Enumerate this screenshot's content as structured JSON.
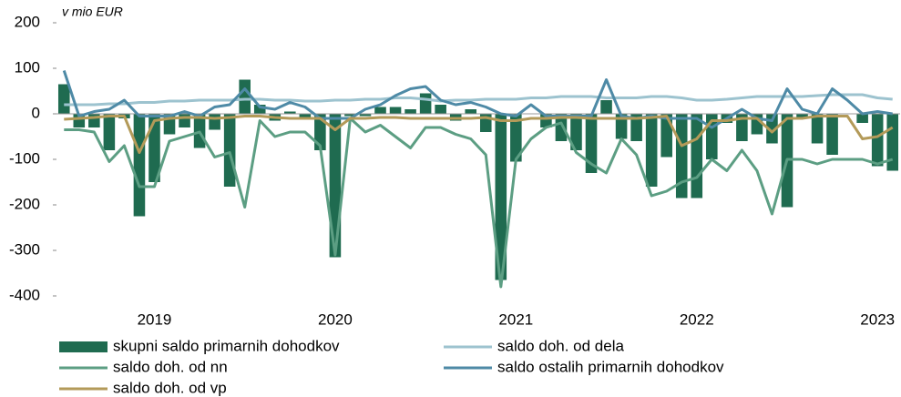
{
  "chart_data": {
    "type": "bar_line",
    "y_unit_label": "v mio EUR",
    "categories": [
      null,
      null,
      null,
      null,
      null,
      null,
      "2019",
      null,
      null,
      null,
      null,
      null,
      null,
      null,
      null,
      null,
      null,
      null,
      "2020",
      null,
      null,
      null,
      null,
      null,
      null,
      null,
      null,
      null,
      null,
      null,
      "2021",
      null,
      null,
      null,
      null,
      null,
      null,
      null,
      null,
      null,
      null,
      null,
      "2022",
      null,
      null,
      null,
      null,
      null,
      null,
      null,
      null,
      null,
      null,
      null,
      "2023",
      null
    ],
    "ylim": [
      -400,
      200
    ],
    "yticks": [
      200,
      100,
      0,
      -100,
      -200,
      -300,
      -400
    ],
    "legend": "bottom",
    "series": [
      {
        "name": "skupni saldo primarnih dohodkov",
        "kind": "bar",
        "color": "#1f6b50",
        "values": [
          65,
          -30,
          -30,
          -80,
          -10,
          -225,
          -150,
          -45,
          -30,
          -75,
          -35,
          -160,
          75,
          20,
          -15,
          5,
          -10,
          -80,
          -315,
          -5,
          -5,
          15,
          15,
          10,
          45,
          20,
          -15,
          10,
          -40,
          -365,
          -105,
          0,
          -30,
          -60,
          -80,
          -130,
          30,
          -55,
          -60,
          -160,
          -95,
          -185,
          -185,
          -100,
          -20,
          -60,
          -45,
          -65,
          -205,
          -10,
          -65,
          -90,
          0,
          -20,
          -115,
          -125
        ]
      },
      {
        "name": "saldo doh. od dela",
        "kind": "line",
        "color": "#9dc3cf",
        "values": [
          20,
          20,
          20,
          22,
          22,
          25,
          25,
          28,
          28,
          30,
          30,
          30,
          32,
          32,
          30,
          30,
          28,
          28,
          30,
          30,
          32,
          32,
          35,
          35,
          32,
          28,
          30,
          30,
          32,
          32,
          32,
          35,
          35,
          38,
          38,
          38,
          35,
          35,
          35,
          38,
          38,
          35,
          30,
          30,
          32,
          35,
          38,
          38,
          38,
          38,
          40,
          42,
          42,
          42,
          35,
          32
        ]
      },
      {
        "name": "saldo doh. od nn",
        "kind": "line",
        "color": "#5c9e83",
        "values": [
          -35,
          -35,
          -40,
          -105,
          -70,
          -160,
          -160,
          -60,
          -50,
          -40,
          -95,
          -85,
          -205,
          -15,
          -50,
          -40,
          -40,
          -70,
          -310,
          -10,
          -40,
          -25,
          -50,
          -75,
          -30,
          -30,
          -45,
          -55,
          -90,
          -380,
          -100,
          -55,
          -30,
          -20,
          -85,
          -110,
          -130,
          -55,
          -90,
          -180,
          -170,
          -150,
          -140,
          -100,
          -125,
          -80,
          -125,
          -220,
          -100,
          -100,
          -110,
          -100,
          -100,
          -100,
          -110,
          -100
        ]
      },
      {
        "name": "saldo ostalih primarnih dohodkov",
        "kind": "line",
        "color": "#4e8aa6",
        "values": [
          95,
          -5,
          5,
          10,
          30,
          -5,
          -5,
          -5,
          5,
          -5,
          15,
          20,
          55,
          15,
          10,
          25,
          15,
          -10,
          -10,
          -10,
          10,
          20,
          40,
          55,
          60,
          30,
          20,
          25,
          15,
          0,
          -5,
          20,
          -5,
          -5,
          -5,
          -5,
          75,
          -5,
          -10,
          -5,
          -10,
          -10,
          -10,
          -30,
          -10,
          10,
          -10,
          -15,
          55,
          10,
          0,
          55,
          30,
          0,
          5,
          0
        ]
      },
      {
        "name": "saldo doh. od vp",
        "kind": "line",
        "color": "#b39a59",
        "values": [
          -12,
          -10,
          -8,
          -5,
          -5,
          -85,
          -15,
          -10,
          -8,
          -8,
          -10,
          -8,
          -5,
          -5,
          -8,
          -10,
          -10,
          -10,
          -35,
          -10,
          -10,
          -8,
          -8,
          -10,
          -10,
          -10,
          -10,
          -10,
          -8,
          -15,
          -15,
          -10,
          -10,
          -8,
          -8,
          -10,
          -10,
          -10,
          -10,
          -8,
          -5,
          -70,
          -55,
          -15,
          -15,
          -10,
          -10,
          -40,
          -10,
          -10,
          -5,
          -5,
          -5,
          -55,
          -50,
          -30
        ]
      }
    ]
  }
}
